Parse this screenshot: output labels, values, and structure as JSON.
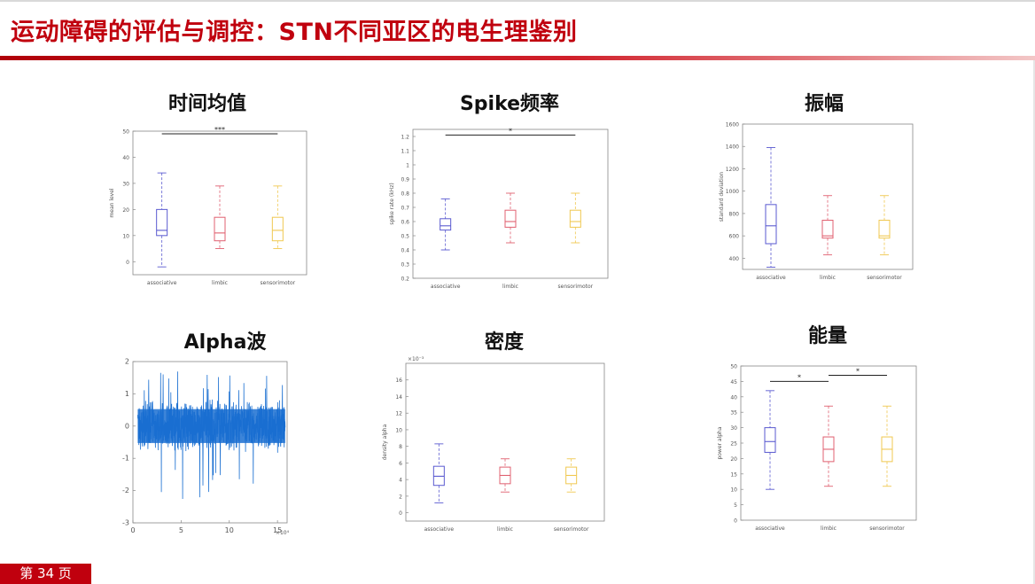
{
  "slide": {
    "title": "运动障碍的评估与调控：STN不同亚区的电生理鉴别",
    "page_label": "第 34 页"
  },
  "colors": {
    "title_red": "#c0000e",
    "associative": "#5a5ad0",
    "limbic": "#e06070",
    "sensorimotor": "#f0c850",
    "signal_blue": "#1a6fd1"
  },
  "chart_data": [
    {
      "id": "time-mean",
      "title": "时间均值",
      "type": "box",
      "ylabel": "mean level",
      "ylim": [
        -5,
        50
      ],
      "yticks": [
        "0",
        "10",
        "20",
        "30",
        "40",
        "50"
      ],
      "categories": [
        "associative",
        "limbic",
        "sensorimotor"
      ],
      "boxes": [
        {
          "min": -2,
          "q1": 10,
          "median": 12,
          "q3": 20,
          "max": 34
        },
        {
          "min": 5,
          "q1": 8,
          "median": 11,
          "q3": 17,
          "max": 29
        },
        {
          "min": 5,
          "q1": 8,
          "median": 12,
          "q3": 17,
          "max": 29
        }
      ],
      "significance": [
        {
          "from": 0,
          "to": 2,
          "y": 49,
          "label": "***"
        }
      ]
    },
    {
      "id": "spike-rate",
      "title": "Spike频率",
      "type": "box",
      "ylabel": "spike rate (kHz)",
      "ylim": [
        0.2,
        1.25
      ],
      "yticks": [
        "0.2",
        "0.3",
        "0.4",
        "0.5",
        "0.6",
        "0.7",
        "0.8",
        "0.9",
        "1",
        "1.1",
        "1.2"
      ],
      "categories": [
        "associative",
        "limbic",
        "sensorimotor"
      ],
      "boxes": [
        {
          "min": 0.4,
          "q1": 0.54,
          "median": 0.57,
          "q3": 0.62,
          "max": 0.76
        },
        {
          "min": 0.45,
          "q1": 0.56,
          "median": 0.6,
          "q3": 0.68,
          "max": 0.8
        },
        {
          "min": 0.45,
          "q1": 0.56,
          "median": 0.6,
          "q3": 0.68,
          "max": 0.8
        }
      ],
      "significance": [
        {
          "from": 0,
          "to": 2,
          "y": 1.21,
          "label": "*"
        }
      ]
    },
    {
      "id": "amplitude",
      "title": "振幅",
      "type": "box",
      "ylabel": "standard deviation",
      "ylim": [
        300,
        1600
      ],
      "yticks": [
        "400",
        "600",
        "800",
        "1000",
        "1200",
        "1400",
        "1600"
      ],
      "categories": [
        "associative",
        "limbic",
        "sensorimotor"
      ],
      "boxes": [
        {
          "min": 320,
          "q1": 530,
          "median": 690,
          "q3": 880,
          "max": 1390
        },
        {
          "min": 430,
          "q1": 580,
          "median": 600,
          "q3": 740,
          "max": 960
        },
        {
          "min": 430,
          "q1": 580,
          "median": 600,
          "q3": 740,
          "max": 960
        }
      ],
      "significance": []
    },
    {
      "id": "alpha-wave",
      "title": "Alpha波",
      "type": "line",
      "ylim": [
        -3,
        2
      ],
      "xlim": [
        0,
        16
      ],
      "yticks": [
        "-3",
        "-2",
        "-1",
        "0",
        "1",
        "2"
      ],
      "xticks": [
        "0",
        "5",
        "10",
        "15"
      ],
      "x_exponent": "×10⁴",
      "envelope": 0.75,
      "spike_range": [
        -2.3,
        1.75
      ]
    },
    {
      "id": "density",
      "title": "密度",
      "type": "box",
      "ylabel": "density alpha",
      "ylim": [
        -1,
        18
      ],
      "yticks": [
        "0",
        "2",
        "4",
        "6",
        "8",
        "10",
        "12",
        "14",
        "16"
      ],
      "exponent": "×10⁻³",
      "categories": [
        "associative",
        "limbic",
        "sensorimotor"
      ],
      "boxes": [
        {
          "min": 1.2,
          "q1": 3.3,
          "median": 4.4,
          "q3": 5.6,
          "max": 8.3
        },
        {
          "min": 2.5,
          "q1": 3.5,
          "median": 4.5,
          "q3": 5.5,
          "max": 6.5
        },
        {
          "min": 2.5,
          "q1": 3.5,
          "median": 4.5,
          "q3": 5.5,
          "max": 6.5
        }
      ],
      "significance": []
    },
    {
      "id": "power",
      "title": "能量",
      "type": "box",
      "ylabel": "power alpha",
      "ylim": [
        0,
        50
      ],
      "yticks": [
        "0",
        "5",
        "10",
        "15",
        "20",
        "25",
        "30",
        "35",
        "40",
        "45",
        "50"
      ],
      "categories": [
        "associative",
        "limbic",
        "sensorimotor"
      ],
      "boxes": [
        {
          "min": 10,
          "q1": 22,
          "median": 25.5,
          "q3": 30,
          "max": 42
        },
        {
          "min": 11,
          "q1": 19,
          "median": 23,
          "q3": 27,
          "max": 37
        },
        {
          "min": 11,
          "q1": 19,
          "median": 23,
          "q3": 27,
          "max": 37
        }
      ],
      "significance": [
        {
          "from": 0,
          "to": 1,
          "y": 45,
          "label": "*"
        },
        {
          "from": 1,
          "to": 2,
          "y": 47,
          "label": "*"
        }
      ]
    }
  ]
}
